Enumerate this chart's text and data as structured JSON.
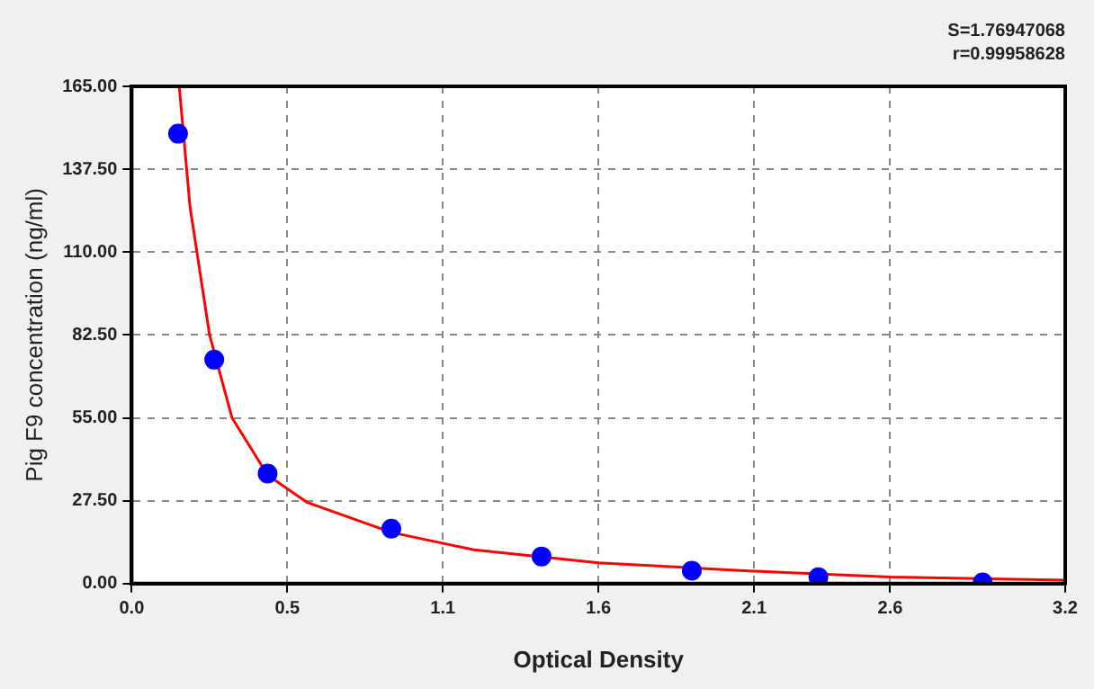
{
  "chart_data": {
    "type": "scatter",
    "xlabel": "Optical Density",
    "ylabel": "Pig F9 concentration (ng/ml)",
    "annotations": [
      "S=1.76947068",
      "r=0.99958628"
    ],
    "xlim": [
      0,
      3.2
    ],
    "xticks": [
      {
        "value": 0,
        "label": "0.0"
      },
      {
        "value": 0.5333,
        "label": "0.5"
      },
      {
        "value": 1.0667,
        "label": "1.1"
      },
      1.6,
      {
        "value": 2.1333,
        "label": "2.1"
      },
      2.6,
      3.2
    ],
    "ylim": [
      0,
      165
    ],
    "yticks": [
      {
        "value": 0,
        "label": "0.00"
      },
      {
        "value": 27.5,
        "label": "27.50"
      },
      {
        "value": 55,
        "label": "55.00"
      },
      {
        "value": 82.5,
        "label": "82.50"
      },
      {
        "value": 110,
        "label": "110.00"
      },
      {
        "value": 137.5,
        "label": "137.50"
      },
      {
        "value": 165,
        "label": "165.00"
      }
    ],
    "grid": true,
    "series": [
      {
        "marker": "circle",
        "color": "#0000ff",
        "x": [
          0.159,
          0.283,
          0.466,
          0.89,
          1.405,
          1.92,
          2.354,
          2.917
        ],
        "values": [
          149.3,
          74.3,
          36.5,
          18.2,
          9.0,
          4.3,
          2.1,
          0.4
        ]
      },
      {
        "type": "line",
        "color": "#ff0000",
        "line_style": "solid",
        "x": [
          0.163,
          0.2,
          0.267,
          0.344,
          0.466,
          0.6,
          0.89,
          1.173,
          1.6,
          2.1,
          2.6,
          3.2
        ],
        "values": [
          165,
          125,
          82.5,
          55,
          36,
          27,
          17,
          11.2,
          6.9,
          4.3,
          2.2,
          1.1
        ]
      }
    ]
  }
}
